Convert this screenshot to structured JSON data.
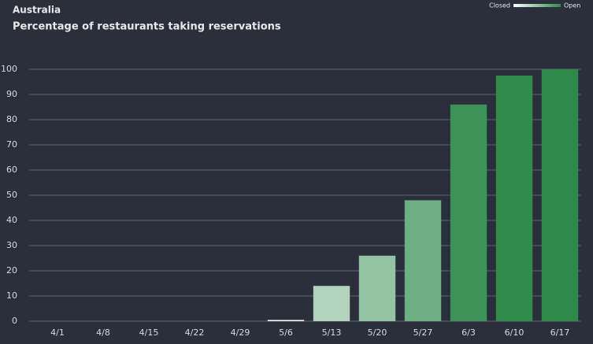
{
  "chart_data": {
    "type": "bar",
    "title": "Australia",
    "subtitle": "Percentage of restaurants taking reservations",
    "categories": [
      "4/1",
      "4/8",
      "4/15",
      "4/22",
      "4/29",
      "5/6",
      "5/13",
      "5/20",
      "5/27",
      "6/3",
      "6/10",
      "6/17"
    ],
    "values": [
      0,
      0,
      0,
      0,
      0,
      0.5,
      14,
      26,
      48,
      86,
      97.5,
      100
    ],
    "color_range": [
      "#ffffff",
      "#2e8a4a"
    ],
    "legend": {
      "low": "Closed",
      "high": "Open"
    },
    "ylim": [
      0,
      100
    ],
    "yticks": [
      0,
      10,
      20,
      30,
      40,
      50,
      60,
      70,
      80,
      90,
      100
    ],
    "grid": true
  }
}
